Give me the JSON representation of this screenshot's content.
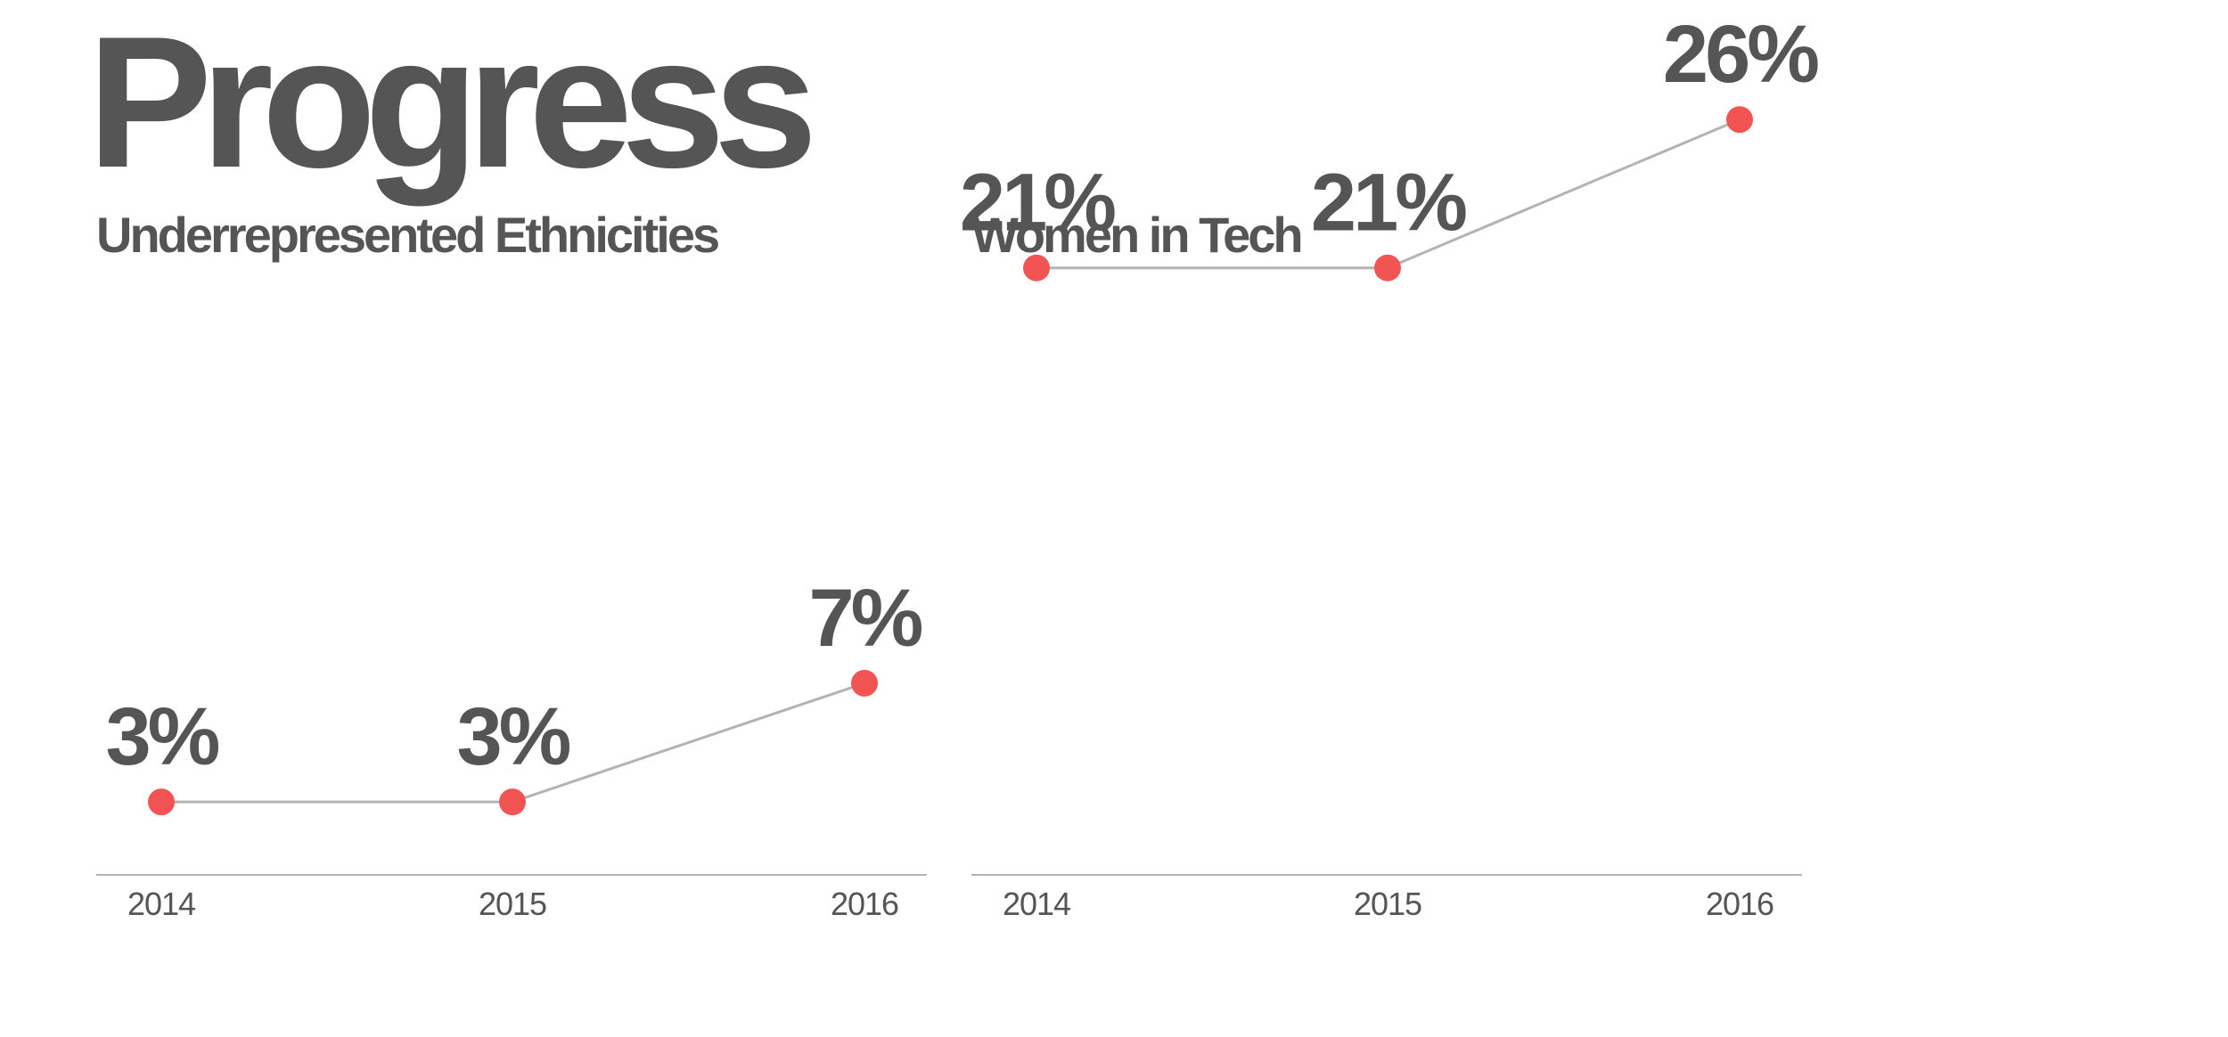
{
  "page": {
    "title": "Progress"
  },
  "colors": {
    "text": "#555555",
    "marker": "#f25353",
    "line": "#b3b3b3",
    "background": "#ffffff"
  },
  "chart_data": [
    {
      "type": "line",
      "title": "Underrepresented Ethnicities",
      "x": [
        "2014",
        "2015",
        "2016"
      ],
      "y": [
        3,
        3,
        7
      ],
      "labels": [
        "3%",
        "3%",
        "7%"
      ],
      "unit": "%",
      "xlabel": "",
      "ylabel": "",
      "ylim": [
        0,
        30
      ],
      "grid": false,
      "legend": "none"
    },
    {
      "type": "line",
      "title": "Women in Tech",
      "x": [
        "2014",
        "2015",
        "2016"
      ],
      "y": [
        21,
        21,
        26
      ],
      "labels": [
        "21%",
        "21%",
        "26%"
      ],
      "unit": "%",
      "xlabel": "",
      "ylabel": "",
      "ylim": [
        0,
        30
      ],
      "grid": false,
      "legend": "none"
    }
  ]
}
